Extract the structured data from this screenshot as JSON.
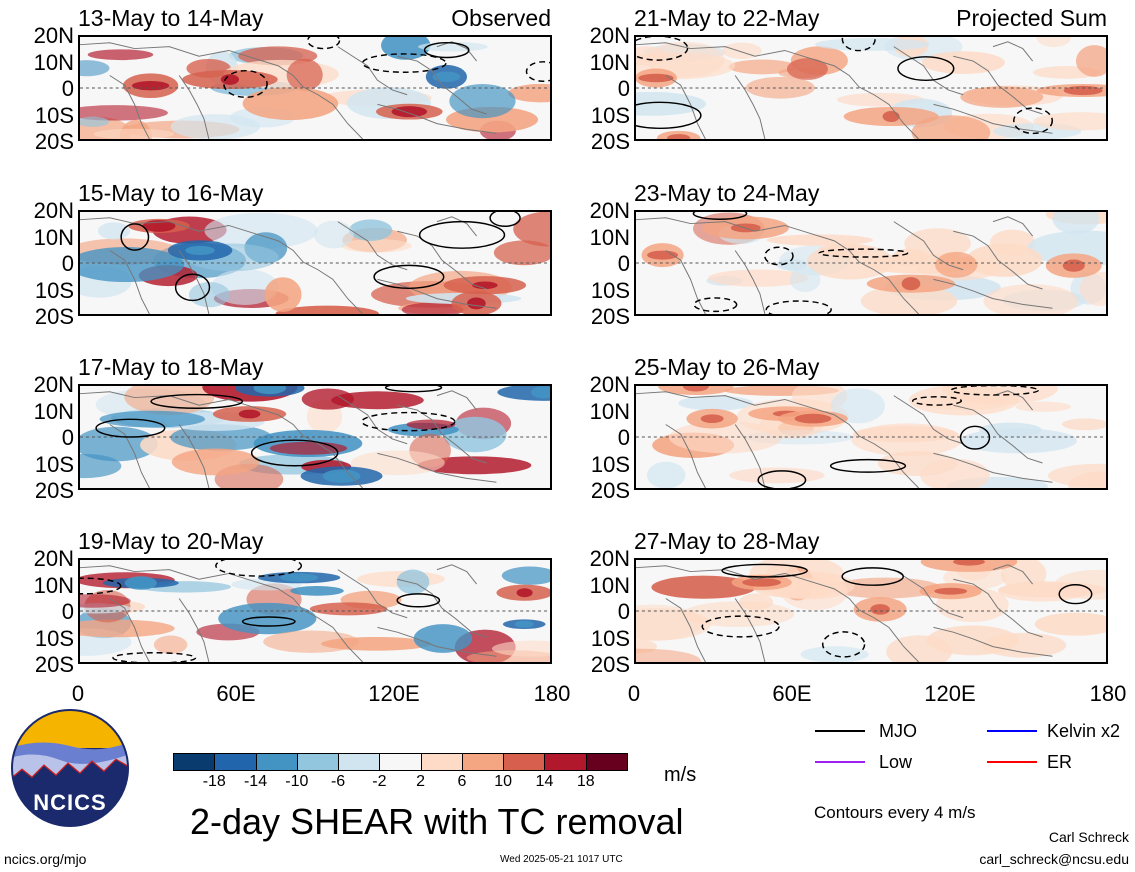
{
  "columns": [
    {
      "tag": "Observed",
      "panels": [
        {
          "title": "13-May to 14-May"
        },
        {
          "title": "15-May to 16-May"
        },
        {
          "title": "17-May to 18-May"
        },
        {
          "title": "19-May to 20-May"
        }
      ]
    },
    {
      "tag": "Projected Sum",
      "panels": [
        {
          "title": "21-May to 22-May"
        },
        {
          "title": "23-May to 24-May"
        },
        {
          "title": "25-May to 26-May"
        },
        {
          "title": "27-May to 28-May"
        }
      ]
    }
  ],
  "lat_labels": [
    "20N",
    "10N",
    "0",
    "10S",
    "20S"
  ],
  "lon_labels": [
    "0",
    "60E",
    "120E",
    "180"
  ],
  "colorbar": {
    "colors": [
      "#0a3b6e",
      "#2166ac",
      "#4393c3",
      "#92c5de",
      "#d1e5f0",
      "#f7f7f7",
      "#fddbc7",
      "#f4a582",
      "#d6604d",
      "#b2182b",
      "#67001f"
    ],
    "ticks": [
      "-18",
      "-14",
      "-10",
      "-6",
      "-2",
      "2",
      "6",
      "10",
      "14",
      "18"
    ],
    "unit": "m/s"
  },
  "legend": {
    "items": [
      {
        "label": "MJO",
        "color": "#000000"
      },
      {
        "label": "Kelvin x2",
        "color": "#0000ff"
      },
      {
        "label": "Low",
        "color": "#a020f0"
      },
      {
        "label": "ER",
        "color": "#ff0000"
      }
    ],
    "contour_note": "Contours every 4 m/s"
  },
  "title": "2-day SHEAR with TC removal",
  "logo_text": "NCICS",
  "footer": {
    "url": "ncics.org/mjo",
    "timestamp": "Wed 2025-05-21 1017 UTC",
    "author": "Carl Schreck",
    "email": "carl_schreck@ncsu.edu"
  }
}
